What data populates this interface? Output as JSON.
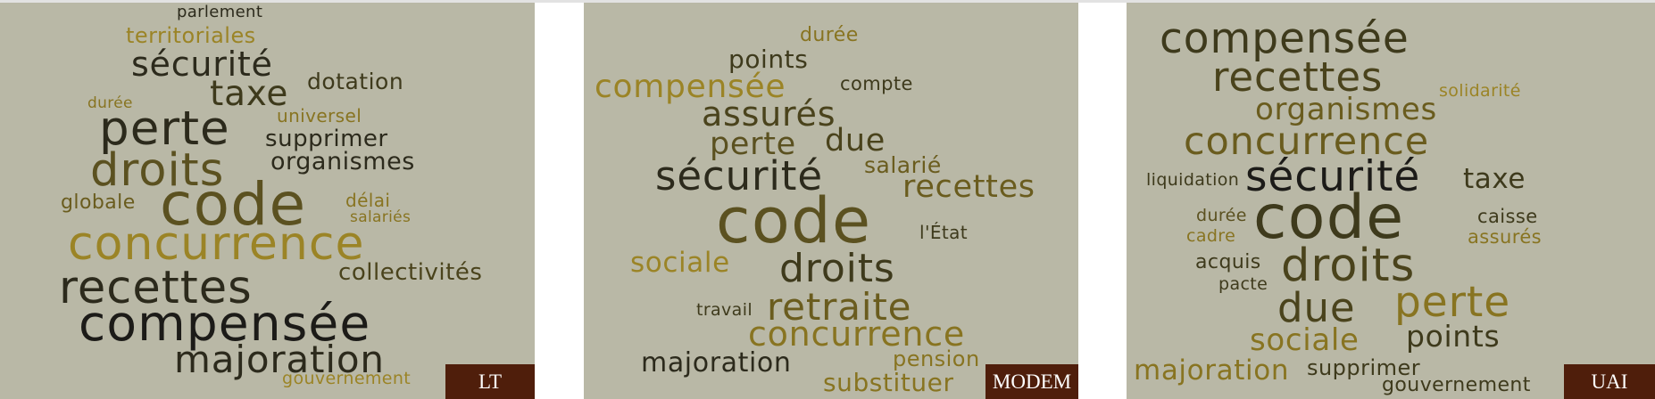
{
  "panels": [
    {
      "id": "lt",
      "label": "LT",
      "words": [
        "parlement",
        "territoriales",
        "sécurité",
        "dotation",
        "taxe",
        "durée",
        "universel",
        "perte",
        "supprimer",
        "droits",
        "organismes",
        "globale",
        "délai",
        "code",
        "salariés",
        "concurrence",
        "collectivités",
        "recettes",
        "compensée",
        "majoration",
        "gouvernement"
      ]
    },
    {
      "id": "modem",
      "label": "MODEM",
      "words": [
        "durée",
        "points",
        "compensée",
        "compte",
        "assurés",
        "perte",
        "due",
        "salarié",
        "sécurité",
        "recettes",
        "code",
        "l'État",
        "sociale",
        "droits",
        "travail",
        "retraite",
        "concurrence",
        "pension",
        "majoration",
        "substituer"
      ]
    },
    {
      "id": "uai",
      "label": "UAI",
      "words": [
        "compensée",
        "recettes",
        "solidarité",
        "organismes",
        "concurrence",
        "liquidation",
        "sécurité",
        "taxe",
        "durée",
        "code",
        "caisse",
        "cadre",
        "assurés",
        "acquis",
        "droits",
        "pacte",
        "perte",
        "due",
        "sociale",
        "points",
        "majoration",
        "supprimer",
        "gouvernement"
      ]
    }
  ]
}
